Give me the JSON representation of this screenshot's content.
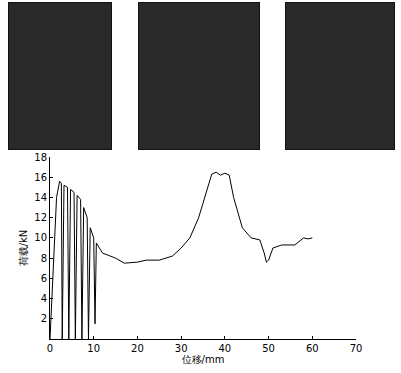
{
  "chart_data": {
    "type": "line",
    "x_label": "位移/mm",
    "y_label": "荷载/kN",
    "color": "#000000",
    "x": [
      0,
      1.5,
      2.2,
      2.6,
      2.8,
      3.2,
      4,
      4.3,
      4.7,
      5.5,
      5.8,
      6.2,
      7,
      7.3,
      7.7,
      8.5,
      8.8,
      9.2,
      10,
      10.3,
      10.6,
      12,
      15,
      17,
      20,
      22,
      25,
      28,
      30,
      32,
      34,
      36,
      37,
      38,
      39,
      40,
      41,
      42,
      44,
      46,
      48,
      49,
      49.5,
      50,
      51,
      53,
      56,
      58,
      59,
      60
    ],
    "values": [
      0,
      14,
      15.6,
      15.4,
      0,
      15.2,
      15,
      0,
      14.8,
      14.5,
      0,
      14.2,
      13.8,
      0,
      13,
      12,
      0,
      11,
      10,
      1.5,
      9.5,
      8.5,
      8,
      7.5,
      7.6,
      7.8,
      7.8,
      8.2,
      9,
      10,
      12,
      15,
      16.3,
      16.5,
      16.2,
      16.4,
      16.2,
      14,
      11,
      10,
      9.8,
      8.5,
      7.6,
      7.8,
      9,
      9.3,
      9.3,
      10,
      9.9,
      10
    ],
    "xlim": [
      0,
      70
    ],
    "xticks": [
      0,
      10,
      20,
      30,
      40,
      50,
      60,
      70
    ],
    "ylim": [
      0,
      18
    ],
    "yticks": [
      2,
      4,
      6,
      8,
      10,
      12,
      14,
      16,
      18
    ],
    "grid": false
  }
}
